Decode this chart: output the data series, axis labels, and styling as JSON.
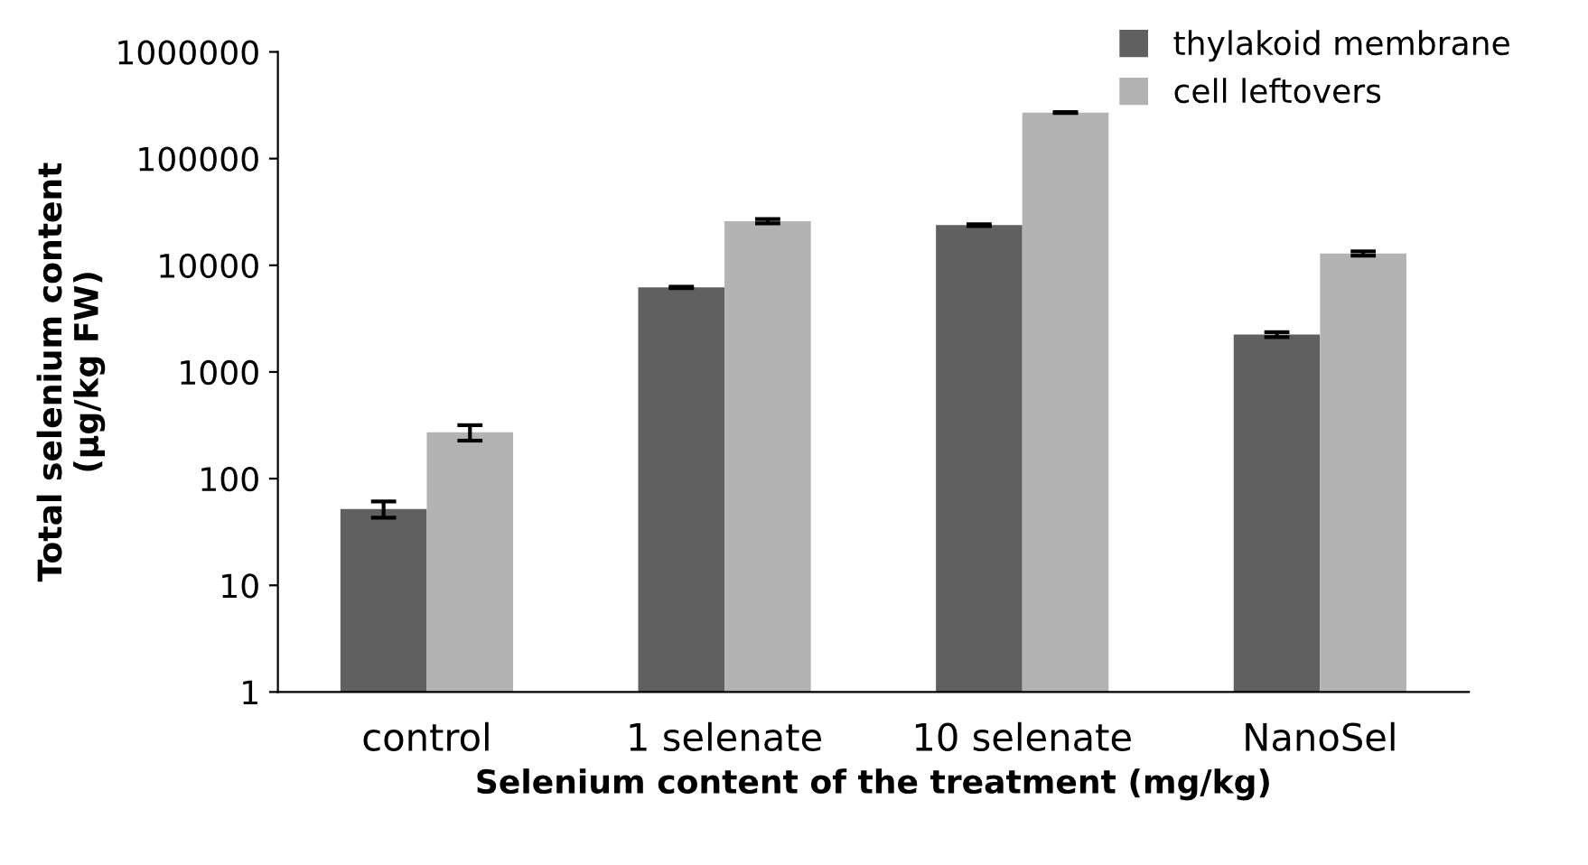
{
  "chart_data": {
    "type": "bar",
    "xlabel": "Selenium content of the treatment (mg/kg)",
    "ylabel": "Total selenium content\n(µg/kg FW)",
    "categories": [
      "control",
      "1 selenate",
      "10 selenate",
      "NanoSel"
    ],
    "series": [
      {
        "name": "thylakoid membrane",
        "color": "#606060",
        "values": [
          52,
          6200,
          23800,
          2240
        ],
        "errors": [
          9,
          100,
          500,
          120
        ]
      },
      {
        "name": "cell leftovers",
        "color": "#b3b3b3",
        "values": [
          272,
          25900,
          270000,
          12900
        ],
        "errors": [
          45,
          1200,
          3000,
          600
        ]
      }
    ],
    "log": true,
    "ylim": [
      1,
      1000000
    ],
    "yticks": [
      1,
      10,
      100,
      1000,
      10000,
      100000,
      1000000
    ],
    "grid": false,
    "legend": "top right"
  }
}
